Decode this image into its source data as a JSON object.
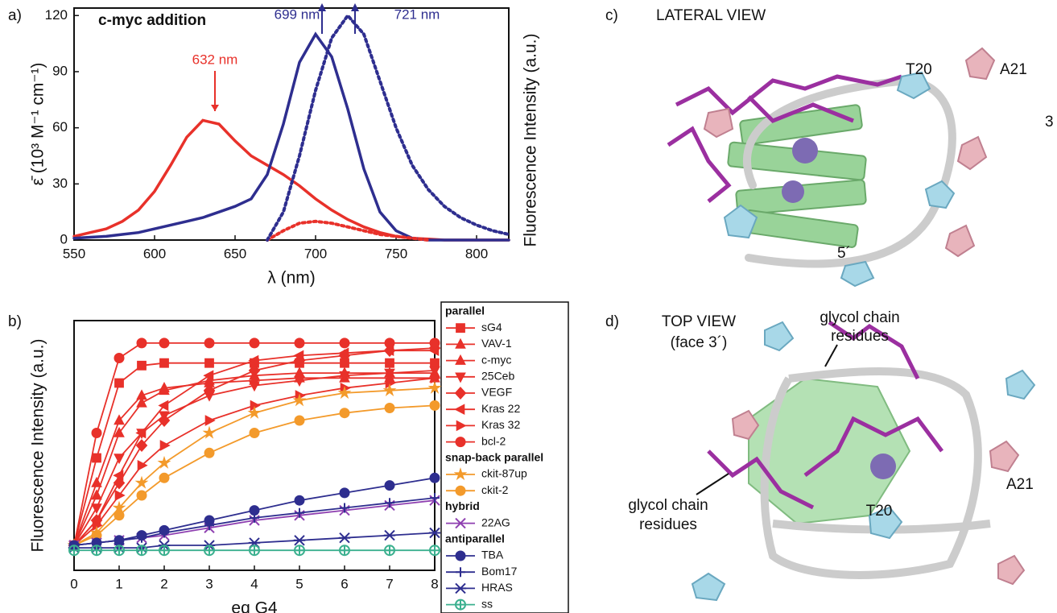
{
  "chart_data": [
    {
      "type": "line",
      "panel_label": "a)",
      "title": "c-myc addition",
      "y_label": "ε̄ (10³ M⁻¹ cm⁻¹)",
      "y2_label": "Fluorescence Intensity (a.u.)",
      "x_label": "λ (nm)",
      "xlim": [
        550,
        820
      ],
      "xticks": [
        550,
        600,
        650,
        700,
        750,
        800
      ],
      "ylim": [
        0,
        124
      ],
      "yticks": [
        0,
        30,
        60,
        90,
        120
      ],
      "x": [
        550,
        560,
        570,
        580,
        590,
        600,
        610,
        620,
        630,
        640,
        650,
        660,
        670,
        680,
        690,
        700,
        710,
        720,
        730,
        740,
        750,
        760,
        770,
        780,
        790,
        800,
        810,
        820
      ],
      "series": [
        {
          "color": "#e8312a",
          "line_style": "solid",
          "values": [
            2,
            4,
            6,
            10,
            16,
            26,
            40,
            55,
            64,
            62,
            53,
            45,
            40,
            35,
            29,
            22,
            16,
            11,
            7,
            4,
            2,
            1,
            0.5,
            0,
            0,
            0,
            0,
            0
          ]
        },
        {
          "color": "#2e2e8f",
          "line_style": "solid",
          "values": [
            1,
            1.5,
            2,
            3,
            4,
            6,
            8,
            10,
            12,
            15,
            18,
            22,
            35,
            62,
            95,
            110,
            98,
            70,
            38,
            15,
            5,
            1,
            0,
            0,
            0,
            0,
            0,
            0
          ]
        },
        {
          "color": "#e8312a",
          "line_style": "dotted",
          "values": [
            null,
            null,
            null,
            null,
            null,
            null,
            null,
            null,
            null,
            null,
            null,
            null,
            0,
            5,
            9,
            10,
            9,
            7,
            5,
            3,
            2,
            1,
            0,
            null,
            null,
            null,
            null,
            null
          ]
        },
        {
          "color": "#2e2e8f",
          "line_style": "dotted",
          "values": [
            null,
            null,
            null,
            null,
            null,
            null,
            null,
            null,
            null,
            null,
            null,
            null,
            0,
            15,
            45,
            80,
            108,
            120,
            110,
            85,
            60,
            40,
            27,
            18,
            12,
            8,
            5,
            3
          ]
        }
      ],
      "annotations": [
        {
          "text": "632 nm",
          "color": "#e8312a"
        },
        {
          "text": "699 nm",
          "color": "#2e2e8f"
        },
        {
          "text": "721 nm",
          "color": "#2e2e8f"
        }
      ]
    },
    {
      "type": "line",
      "panel_label": "b)",
      "y_label": "Fluorescence Intensity (a.u.)",
      "x_label": "eq G4",
      "xlim": [
        0,
        8
      ],
      "xticks": [
        0,
        1,
        2,
        3,
        4,
        5,
        6,
        7,
        8
      ],
      "ylim": [
        0,
        100
      ],
      "x": [
        0,
        0.5,
        1,
        1.5,
        2,
        3,
        4,
        5,
        6,
        7,
        8
      ],
      "groups": [
        {
          "name": "parallel",
          "series": [
            {
              "name": "sG4",
              "color": "#e8312a",
              "marker": "square",
              "values": [
                10,
                45,
                75,
                82,
                83,
                83,
                83,
                83,
                83,
                83,
                83
              ]
            },
            {
              "name": "VAV-1",
              "color": "#e8312a",
              "marker": "triangle-up",
              "values": [
                10,
                35,
                60,
                70,
                73,
                75,
                76,
                77,
                77,
                77,
                77
              ]
            },
            {
              "name": "c-myc",
              "color": "#e8312a",
              "marker": "triangle-up",
              "values": [
                10,
                30,
                55,
                67,
                72,
                76,
                78,
                79,
                79,
                79,
                79
              ]
            },
            {
              "name": "25Ceb",
              "color": "#e8312a",
              "marker": "triangle-down",
              "values": [
                10,
                25,
                45,
                55,
                62,
                70,
                74,
                76,
                78,
                79,
                80
              ]
            },
            {
              "name": "VEGF",
              "color": "#e8312a",
              "marker": "diamond",
              "values": [
                10,
                20,
                35,
                50,
                60,
                72,
                80,
                84,
                86,
                88,
                89
              ]
            },
            {
              "name": "Kras 22",
              "color": "#e8312a",
              "marker": "triangle-left",
              "values": [
                10,
                20,
                38,
                55,
                66,
                78,
                84,
                86,
                87,
                88,
                88
              ]
            },
            {
              "name": "Kras 32",
              "color": "#e8312a",
              "marker": "triangle-right",
              "values": [
                10,
                18,
                30,
                42,
                50,
                60,
                66,
                70,
                73,
                75,
                77
              ]
            },
            {
              "name": "bcl-2",
              "color": "#e8312a",
              "marker": "circle",
              "values": [
                10,
                55,
                85,
                91,
                91,
                91,
                91,
                91,
                91,
                91,
                91
              ]
            }
          ]
        },
        {
          "name": "snap-back parallel",
          "series": [
            {
              "name": "ckit-87up",
              "color": "#f39a2b",
              "marker": "star",
              "values": [
                10,
                15,
                25,
                35,
                43,
                55,
                63,
                68,
                71,
                72,
                73
              ]
            },
            {
              "name": "ckit-2",
              "color": "#f39a2b",
              "marker": "circle",
              "values": [
                10,
                14,
                22,
                30,
                37,
                47,
                55,
                60,
                63,
                65,
                66
              ]
            }
          ]
        },
        {
          "name": "hybrid",
          "series": [
            {
              "name": "22AG",
              "color": "#8e3fb0",
              "marker": "x",
              "values": [
                10,
                11,
                12,
                13,
                14,
                17,
                20,
                22,
                24,
                26,
                28
              ]
            }
          ]
        },
        {
          "name": "antiparallel",
          "series": [
            {
              "name": "TBA",
              "color": "#2e2e8f",
              "marker": "circle",
              "values": [
                10,
                11,
                12,
                14,
                16,
                20,
                24,
                28,
                31,
                34,
                37
              ]
            },
            {
              "name": "Bom17",
              "color": "#2e2e8f",
              "marker": "plus",
              "values": [
                10,
                11,
                12,
                13,
                15,
                18,
                21,
                23,
                25,
                27,
                29
              ]
            },
            {
              "name": "HRAS",
              "color": "#2e2e8f",
              "marker": "asterisk",
              "values": [
                9,
                9,
                9,
                9,
                10,
                10,
                11,
                12,
                13,
                14,
                15
              ]
            },
            {
              "name": "ss",
              "color": "#3bb08f",
              "marker": "circle-plus",
              "values": [
                8,
                8,
                8,
                8,
                8,
                8,
                8,
                8,
                8,
                8,
                8
              ]
            }
          ]
        }
      ]
    }
  ],
  "panels": [
    {
      "label": "c)",
      "title": "LATERAL VIEW",
      "annotations": [
        "T20",
        "A21",
        "3",
        "5´"
      ]
    },
    {
      "label": "d)",
      "title": "TOP VIEW",
      "subtitle": "(face 3´)",
      "annotations": [
        [
          "glycol chain",
          "residues"
        ],
        [
          "glycol chain",
          "residues"
        ],
        "A21",
        "T20"
      ]
    }
  ]
}
